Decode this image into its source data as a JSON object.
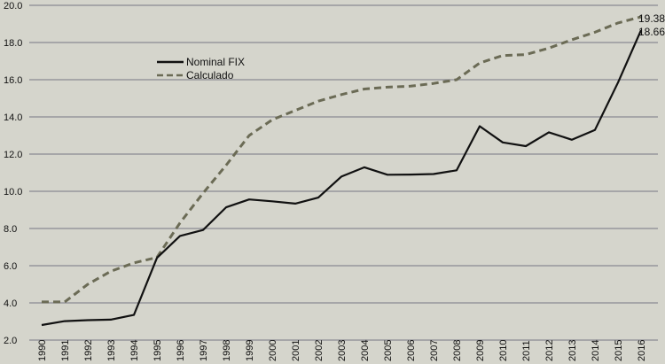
{
  "chart_data": {
    "type": "line",
    "title": "",
    "xlabel": "",
    "ylabel": "",
    "ylim": [
      2.0,
      20.0
    ],
    "yticks": [
      "2.0",
      "4.0",
      "6.0",
      "8.0",
      "10.0",
      "12.0",
      "14.0",
      "16.0",
      "18.0",
      "20.0"
    ],
    "grid": true,
    "legend_position": "upper-left-inside",
    "x": [
      1990,
      1991,
      1992,
      1993,
      1994,
      1995,
      1996,
      1997,
      1998,
      1999,
      2000,
      2001,
      2002,
      2003,
      2004,
      2005,
      2006,
      2007,
      2008,
      2009,
      2010,
      2011,
      2012,
      2013,
      2014,
      2015,
      2016
    ],
    "series": [
      {
        "name": "Nominal FIX",
        "style": "solid",
        "color": "#111111",
        "values": [
          2.81,
          3.02,
          3.07,
          3.1,
          3.35,
          6.42,
          7.6,
          7.92,
          9.14,
          9.56,
          9.46,
          9.34,
          9.66,
          10.79,
          11.29,
          10.89,
          10.9,
          10.93,
          11.13,
          13.5,
          12.63,
          12.43,
          13.17,
          12.77,
          13.3,
          15.85,
          18.66
        ]
      },
      {
        "name": "Calculado",
        "style": "dashed",
        "color": "#6b6b55",
        "values": [
          4.05,
          4.05,
          5.0,
          5.7,
          6.15,
          6.45,
          8.3,
          9.9,
          11.4,
          13.0,
          13.85,
          14.35,
          14.85,
          15.2,
          15.5,
          15.6,
          15.65,
          15.8,
          16.0,
          16.9,
          17.3,
          17.35,
          17.7,
          18.15,
          18.55,
          19.05,
          19.38
        ]
      }
    ],
    "annotations": [
      "19.38",
      "18.66"
    ]
  },
  "legend": {
    "items": [
      "Nominal FIX",
      "Calculado"
    ]
  }
}
